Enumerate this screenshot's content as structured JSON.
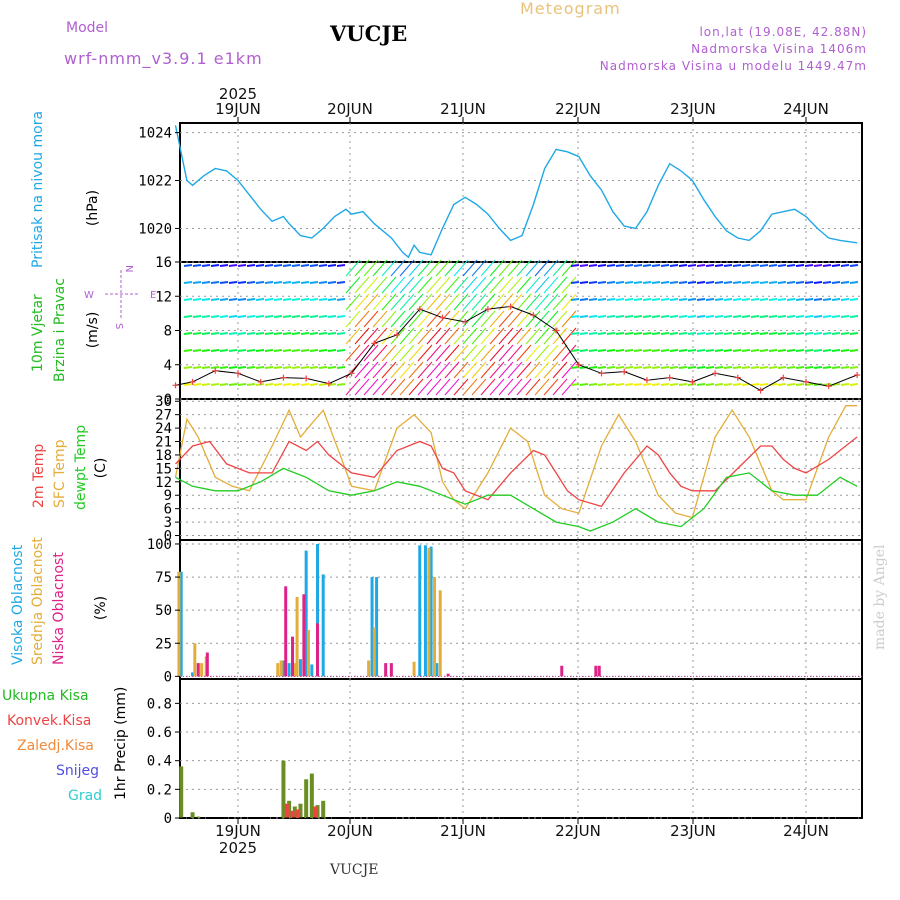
{
  "header": {
    "model_label": "Model",
    "model_version": "wrf-nmm_v3.9.1 e1km",
    "station": "VUCJE",
    "title": "Meteogram",
    "coords": "lon,lat (19.08E, 42.88N)",
    "altitude": "Nadmorska Visina 1406m",
    "model_altitude": "Nadmorska Visina u modelu 1449.47m"
  },
  "footer": {
    "station": "VUCJE",
    "credit": "made by Angel"
  },
  "time_axis": {
    "year": "2025",
    "days": [
      "19JUN",
      "20JUN",
      "21JUN",
      "22JUN",
      "23JUN",
      "24JUN"
    ]
  },
  "colors": {
    "pressure": "#1fa8e6",
    "temp2m": "#ee4444",
    "sfc_temp": "#e4ad3a",
    "dewpoint": "#22cc22",
    "high_cloud": "#1fa8e6",
    "mid_cloud": "#e4ad3a",
    "low_cloud": "#dd2288",
    "total_precip": "#6a8e23",
    "convective_precip": "#ee4444",
    "frozen_precip": "#f08a3c",
    "snow": "#5050e0",
    "graupel": "#33cccc",
    "wind_label": "#22bb22",
    "compass": "#b05fd0"
  },
  "panels": {
    "pressure": {
      "label": "Pritisak na nivou mora",
      "unit": "(hPa)",
      "ticks": [
        "1020",
        "1022",
        "1024"
      ]
    },
    "wind": {
      "label_line1": "10m Vjetar",
      "label_line2": "Brzina i Pravac",
      "unit": "(m/s)",
      "ticks": [
        "0",
        "4",
        "8",
        "12",
        "16"
      ],
      "compass": {
        "north": "N",
        "south": "S",
        "west": "W",
        "east": "E"
      }
    },
    "temperature": {
      "label_2m": "2m Temp",
      "label_sfc": "SFC Temp",
      "label_dew": "dewpt Temp",
      "unit": "(C)",
      "ticks": [
        "0",
        "3",
        "6",
        "9",
        "12",
        "15",
        "18",
        "21",
        "24",
        "27",
        "30"
      ]
    },
    "cloud": {
      "label_high": "Visoka Oblacnost",
      "label_mid": "Srednja Oblacnost",
      "label_low": "Niska Oblacnost",
      "unit": "(%)",
      "ticks": [
        "0",
        "25",
        "50",
        "75",
        "100"
      ]
    },
    "precip": {
      "legend": [
        "Ukupna Kisa",
        "Konvek.Kisa",
        "Zaledj.Kisa",
        "Snijeg",
        "Grad"
      ],
      "unit": "1hr Precip (mm)",
      "ticks": [
        "0",
        "0.2",
        "0.4",
        "0.6",
        "0.8"
      ]
    }
  },
  "chart_data": [
    {
      "type": "line",
      "title": "Pritisak na nivou mora",
      "ylabel": "(hPa)",
      "ylim": [
        1018.6,
        1024.4
      ],
      "x_unit": "days since 19JUN 00:00",
      "xlim": [
        -0.55,
        5.45
      ],
      "series": [
        {
          "name": "Pritisak na nivou mora",
          "x": [
            -0.55,
            -0.45,
            -0.4,
            -0.3,
            -0.2,
            -0.1,
            0.0,
            0.1,
            0.2,
            0.3,
            0.4,
            0.45,
            0.55,
            0.65,
            0.75,
            0.85,
            0.95,
            1.0,
            1.1,
            1.2,
            1.35,
            1.45,
            1.5,
            1.55,
            1.6,
            1.7,
            1.8,
            1.9,
            2.0,
            2.1,
            2.2,
            2.3,
            2.4,
            2.5,
            2.6,
            2.7,
            2.8,
            2.9,
            3.0,
            3.1,
            3.2,
            3.3,
            3.4,
            3.5,
            3.6,
            3.7,
            3.8,
            3.9,
            4.0,
            4.1,
            4.2,
            4.3,
            4.4,
            4.5,
            4.6,
            4.7,
            4.8,
            4.9,
            5.0,
            5.1,
            5.2,
            5.3,
            5.45
          ],
          "values": [
            1024.3,
            1022.0,
            1021.8,
            1022.2,
            1022.5,
            1022.4,
            1022.0,
            1021.4,
            1020.8,
            1020.3,
            1020.5,
            1020.2,
            1019.7,
            1019.6,
            1020.0,
            1020.5,
            1020.8,
            1020.6,
            1020.7,
            1020.2,
            1019.6,
            1019.0,
            1018.8,
            1019.3,
            1019.0,
            1018.9,
            1020.0,
            1021.0,
            1021.3,
            1021.0,
            1020.6,
            1020.0,
            1019.5,
            1019.7,
            1021.0,
            1022.5,
            1023.3,
            1023.2,
            1023.0,
            1022.2,
            1021.6,
            1020.7,
            1020.1,
            1020.0,
            1020.7,
            1021.8,
            1022.7,
            1022.4,
            1022.0,
            1021.2,
            1020.5,
            1019.9,
            1019.6,
            1019.5,
            1019.9,
            1020.6,
            1020.7,
            1020.8,
            1020.5,
            1020.0,
            1019.6,
            1019.5,
            1019.4
          ]
        }
      ]
    },
    {
      "type": "line",
      "title": "10m Vjetar Brzina i Pravac",
      "ylabel": "(m/s)",
      "ylim": [
        0,
        16
      ],
      "x_unit": "days since 19JUN 00:00",
      "xlim": [
        -0.55,
        5.45
      ],
      "series": [
        {
          "name": "10m Vjetar",
          "x": [
            -0.55,
            -0.4,
            -0.2,
            0.0,
            0.2,
            0.4,
            0.6,
            0.8,
            1.0,
            1.2,
            1.4,
            1.6,
            1.8,
            2.0,
            2.2,
            2.4,
            2.6,
            2.8,
            3.0,
            3.2,
            3.4,
            3.6,
            3.8,
            4.0,
            4.2,
            4.4,
            4.6,
            4.8,
            5.0,
            5.2,
            5.45
          ],
          "values": [
            1.6,
            2.0,
            3.3,
            3.0,
            2.0,
            2.5,
            2.4,
            1.8,
            3.0,
            6.5,
            7.5,
            10.5,
            9.5,
            9.0,
            10.5,
            10.8,
            9.8,
            8.0,
            4.0,
            3.0,
            3.2,
            2.2,
            2.5,
            2.0,
            3.0,
            2.5,
            1.0,
            2.5,
            2.0,
            1.5,
            2.8
          ]
        }
      ]
    },
    {
      "type": "line",
      "title": "2m Temp / SFC Temp / dewpt Temp",
      "ylabel": "(C)",
      "ylim": [
        -1,
        30.5
      ],
      "x_unit": "days since 19JUN 00:00",
      "xlim": [
        -0.55,
        5.45
      ],
      "series": [
        {
          "name": "2m Temp",
          "x": [
            -0.55,
            -0.4,
            -0.25,
            -0.1,
            0.1,
            0.3,
            0.45,
            0.6,
            0.7,
            0.8,
            1.0,
            1.2,
            1.4,
            1.6,
            1.7,
            1.8,
            1.9,
            2.0,
            2.2,
            2.4,
            2.6,
            2.7,
            2.8,
            2.9,
            3.0,
            3.2,
            3.4,
            3.6,
            3.7,
            3.8,
            3.9,
            4.0,
            4.2,
            4.4,
            4.6,
            4.7,
            4.8,
            4.9,
            5.0,
            5.2,
            5.45
          ],
          "values": [
            16,
            20,
            21,
            16,
            14,
            14,
            21,
            19,
            21,
            18,
            14,
            13,
            19,
            21,
            20,
            15,
            14,
            10,
            8,
            14,
            19,
            18,
            14,
            10,
            8,
            6.5,
            14,
            20,
            18,
            14,
            11,
            10,
            10,
            15,
            20,
            20,
            17,
            15,
            14,
            17,
            22
          ]
        },
        {
          "name": "SFC Temp",
          "x": [
            -0.55,
            -0.45,
            -0.35,
            -0.2,
            -0.05,
            0.1,
            0.3,
            0.45,
            0.55,
            0.65,
            0.75,
            0.9,
            1.0,
            1.2,
            1.4,
            1.55,
            1.7,
            1.8,
            1.9,
            2.0,
            2.2,
            2.4,
            2.55,
            2.7,
            2.85,
            3.0,
            3.2,
            3.35,
            3.5,
            3.7,
            3.85,
            4.0,
            4.2,
            4.35,
            4.5,
            4.7,
            4.8,
            4.9,
            5.0,
            5.2,
            5.35,
            5.45
          ],
          "values": [
            13,
            26,
            22,
            13,
            11,
            10,
            20,
            28,
            22,
            25,
            28,
            18,
            11,
            10,
            24,
            27,
            23,
            12,
            8,
            6,
            14,
            24,
            21,
            9,
            6,
            5,
            20,
            27,
            21,
            9,
            5,
            4,
            22,
            28,
            22,
            10,
            8,
            8,
            8,
            22,
            29,
            29
          ]
        },
        {
          "name": "dewpt Temp",
          "x": [
            -0.55,
            -0.4,
            -0.2,
            0.0,
            0.2,
            0.4,
            0.5,
            0.6,
            0.8,
            1.0,
            1.2,
            1.4,
            1.6,
            1.8,
            2.0,
            2.2,
            2.4,
            2.6,
            2.8,
            3.0,
            3.1,
            3.3,
            3.5,
            3.7,
            3.9,
            4.1,
            4.3,
            4.5,
            4.7,
            4.9,
            5.1,
            5.3,
            5.45
          ],
          "values": [
            13,
            11,
            10,
            10,
            12,
            15,
            14,
            13,
            10,
            9,
            10,
            12,
            11,
            9,
            7,
            9,
            9,
            6,
            3,
            2,
            1,
            3,
            6,
            3,
            2,
            6,
            13,
            14,
            10,
            9,
            9,
            13,
            11
          ]
        }
      ]
    },
    {
      "type": "bar",
      "title": "Visoka Oblacnost / Srednja Oblacnost / Niska Oblacnost",
      "ylabel": "(%)",
      "ylim": [
        -2,
        103
      ],
      "x_unit": "days since 19JUN 00:00",
      "xlim": [
        -0.55,
        5.45
      ],
      "series": [
        {
          "name": "Visoka Oblacnost",
          "x": [
            -0.5,
            -0.4,
            0.4,
            0.45,
            0.55,
            0.6,
            0.65,
            0.7,
            0.75,
            1.18,
            1.22,
            1.6,
            1.65,
            1.7,
            1.75
          ],
          "values": [
            79,
            3,
            12,
            10,
            13,
            95,
            9,
            100,
            77,
            75,
            75,
            99,
            99,
            98,
            10
          ]
        },
        {
          "name": "Srednja Oblacnost",
          "x": [
            -0.52,
            -0.38,
            -0.32,
            -0.28,
            0.35,
            0.38,
            0.5,
            0.52,
            0.62,
            1.15,
            1.2,
            1.55,
            1.68,
            1.73,
            1.78
          ],
          "values": [
            79,
            25,
            10,
            15,
            10,
            12,
            10,
            60,
            35,
            12,
            37,
            11,
            97,
            75,
            65
          ]
        },
        {
          "name": "Niska Oblacnost",
          "x": [
            -0.35,
            -0.27,
            0.42,
            0.48,
            0.58,
            0.7,
            1.3,
            1.35,
            1.85,
            2.85,
            3.15,
            3.18
          ],
          "values": [
            10,
            18,
            68,
            30,
            62,
            40,
            10,
            10,
            2,
            8,
            8,
            8
          ]
        }
      ]
    },
    {
      "type": "bar",
      "title": "1hr Precip",
      "ylabel": "1hr Precip (mm)",
      "ylim": [
        0,
        0.97
      ],
      "x_unit": "days since 19JUN 00:00",
      "xlim": [
        -0.55,
        5.45
      ],
      "series": [
        {
          "name": "Ukupna Kisa",
          "x": [
            -0.5,
            -0.4,
            -0.35,
            0.4,
            0.45,
            0.5,
            0.55,
            0.6,
            0.65,
            0.7,
            0.75
          ],
          "values": [
            0.36,
            0.04,
            0.01,
            0.4,
            0.12,
            0.08,
            0.1,
            0.27,
            0.31,
            0.09,
            0.12
          ]
        },
        {
          "name": "Konvek.Kisa",
          "x": [
            0.43,
            0.48,
            0.53,
            0.68
          ],
          "values": [
            0.1,
            0.05,
            0.06,
            0.08
          ]
        }
      ]
    }
  ]
}
